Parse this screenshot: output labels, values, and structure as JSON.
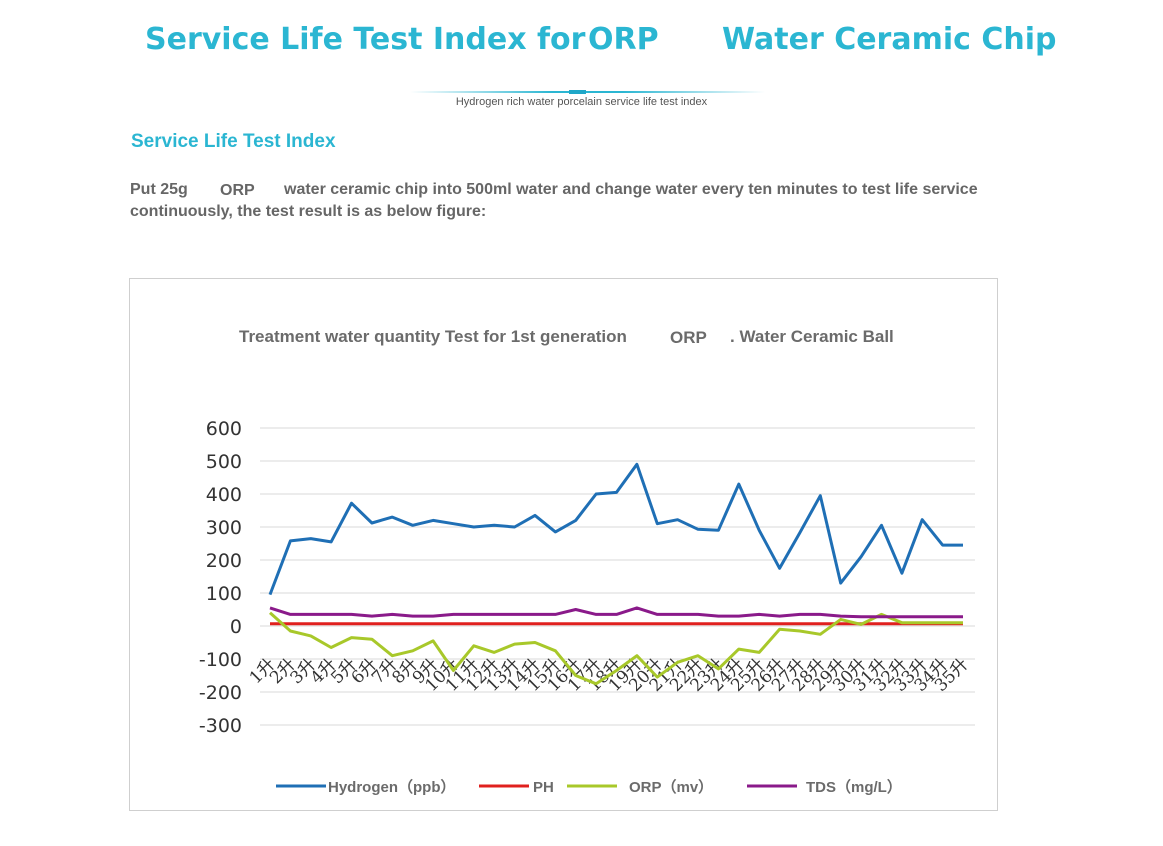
{
  "header": {
    "title_part1": "Service Life Test Index for",
    "title_part2": "ORP",
    "title_part3": "Water Ceramic Chip",
    "subtitle": "Hydrogen rich water porcelain service life test index"
  },
  "section": {
    "heading": "Service Life Test Index",
    "paragraph_part1": "Put 25g",
    "paragraph_orp": "ORP",
    "paragraph_part2": "water ceramic chip into 500ml water and change water every ten minutes to test life service",
    "paragraph_part3": "continuously, the test result is as below figure:"
  },
  "colors": {
    "accent": "#2bb6d2",
    "hydrogen": "#1f6fb5",
    "ph": "#e0201e",
    "orp": "#a8c82a",
    "tds": "#8a1a8a"
  },
  "chart_data": {
    "type": "line",
    "title_part1": "Treatment water quantity Test for 1st generation",
    "title_orp": "ORP",
    "title_part2": ". Water Ceramic Ball",
    "ylim": [
      -300,
      600
    ],
    "yticks": [
      600,
      500,
      400,
      300,
      200,
      100,
      0,
      -100,
      -200,
      -300
    ],
    "categories": [
      "1升",
      "2升",
      "3升",
      "4升",
      "5升",
      "6升",
      "7升",
      "8升",
      "9升",
      "10升",
      "11升",
      "12升",
      "13升",
      "14升",
      "15升",
      "16升",
      "17升",
      "18升",
      "19升",
      "20升",
      "21升",
      "22升",
      "23升",
      "24升",
      "25升",
      "26升",
      "27升",
      "28升",
      "29升",
      "30升",
      "31升",
      "32升",
      "33升",
      "34升",
      "35升"
    ],
    "series": [
      {
        "name": "Hydrogen（ppb）",
        "color": "#1f6fb5",
        "values": [
          95,
          258,
          265,
          255,
          372,
          312,
          330,
          305,
          320,
          310,
          300,
          305,
          300,
          335,
          285,
          320,
          400,
          405,
          490,
          310,
          322,
          293,
          290,
          430,
          290,
          175,
          283,
          395,
          130,
          210,
          305,
          160,
          322,
          245,
          245
        ]
      },
      {
        "name": "PH",
        "color": "#e0201e",
        "values": [
          7,
          7,
          7,
          7,
          7,
          7,
          7,
          7,
          7,
          7,
          7,
          7,
          7,
          7,
          7,
          7,
          7,
          7,
          7,
          7,
          7,
          7,
          7,
          7,
          7,
          7,
          7,
          7,
          7,
          7,
          7,
          7,
          7,
          7,
          7
        ]
      },
      {
        "name": "ORP（mv）",
        "color": "#a8c82a",
        "values": [
          40,
          -15,
          -30,
          -65,
          -35,
          -40,
          -90,
          -75,
          -45,
          -135,
          -60,
          -80,
          -55,
          -50,
          -75,
          -150,
          -175,
          -135,
          -90,
          -155,
          -110,
          -90,
          -130,
          -70,
          -80,
          -10,
          -15,
          -25,
          20,
          5,
          35,
          10,
          10,
          10,
          10
        ]
      },
      {
        "name": "TDS（mg/L）",
        "color": "#8a1a8a",
        "values": [
          55,
          35,
          35,
          35,
          35,
          30,
          35,
          30,
          30,
          35,
          35,
          35,
          35,
          35,
          35,
          50,
          35,
          35,
          55,
          35,
          35,
          35,
          30,
          30,
          35,
          30,
          35,
          35,
          30,
          28,
          28,
          28,
          28,
          28,
          28
        ]
      }
    ],
    "legend": [
      "Hydrogen（ppb）",
      "PH",
      "ORP（mv）",
      "TDS（mg/L）"
    ],
    "legend_position": "bottom",
    "grid": true
  }
}
